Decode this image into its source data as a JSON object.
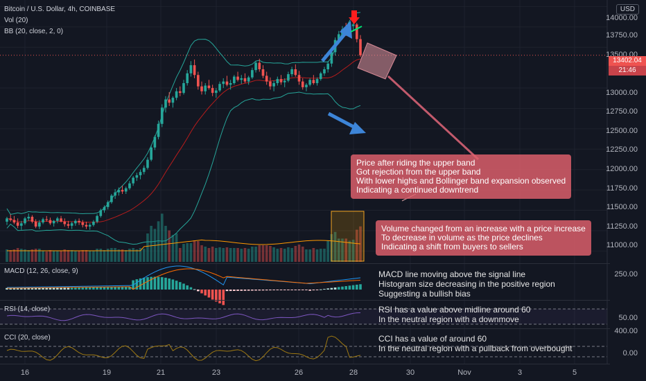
{
  "header": {
    "symbol_title": "Bitcoin / U.S. Dollar, 4h, COINBASE",
    "indicator_vol": "Vol (20)",
    "indicator_bb": "BB (20, close, 2, 0)",
    "currency": "USD"
  },
  "price_axis": {
    "labels": [
      "14000.00",
      "13750.00",
      "13500.00",
      "13000.00",
      "12750.00",
      "12500.00",
      "12250.00",
      "12000.00",
      "11750.00",
      "11500.00",
      "11250.00",
      "11000.00"
    ],
    "current_price": "13402.04",
    "countdown": "21:46"
  },
  "time_axis": {
    "labels": [
      "16",
      "19",
      "21",
      "23",
      "26",
      "28",
      "30",
      "Nov",
      "3",
      "5"
    ]
  },
  "panes": {
    "macd": {
      "label": "MACD (12, 26, close, 9)",
      "axis": "250.00"
    },
    "rsi": {
      "label": "RSI (14, close)",
      "axis": "50.00"
    },
    "cci": {
      "label": "CCI (20, close)",
      "axis_top": "400.00",
      "axis_mid": "0.00"
    }
  },
  "annotations": {
    "bb": [
      "Price after riding the upper band",
      "Got rejection from the upper band",
      "With lower highs and Bollinger band expansion observed",
      "Indicating a continued downtrend"
    ],
    "volume": [
      "Volume changed from an increase with a price increase",
      "To decrease in volume as the price declines",
      "Indicating a shift from buyers to sellers"
    ],
    "macd": [
      "MACD line moving above the signal line",
      "Histogram size decreasing in the positive region",
      "Suggesting a bullish bias"
    ],
    "rsi": [
      "RSI has a value above midline around 60",
      "In the neutral region with a downmove"
    ],
    "cci": [
      "CCI has a value of around 60",
      "In the neutral region with a pullback from overbought"
    ]
  },
  "colors": {
    "background": "#131722",
    "up": "#26a69a",
    "down": "#ef5350",
    "bb_band": "#26a69a",
    "bb_basis": "#b71c1c",
    "macd_line": "#2196f3",
    "signal_line": "#ff6d00",
    "rsi_line": "#7e57c2",
    "cci_line": "#a07a12",
    "annotation_bg": "#e2606d",
    "arrow_blue": "#3d85d8",
    "arrow_red": "#ff1e1e"
  },
  "chart_data": [
    {
      "type": "candlestick",
      "title": "Bitcoin / U.S. Dollar, 4h, COINBASE",
      "ylim": [
        10850,
        14080
      ],
      "last_price": 13402.04,
      "candles": [
        [
          11360,
          11420,
          11320,
          11400
        ],
        [
          11400,
          11450,
          11360,
          11380
        ],
        [
          11380,
          11430,
          11330,
          11350
        ],
        [
          11350,
          11400,
          11280,
          11310
        ],
        [
          11310,
          11370,
          11260,
          11340
        ],
        [
          11340,
          11420,
          11320,
          11400
        ],
        [
          11400,
          11460,
          11370,
          11420
        ],
        [
          11420,
          11440,
          11340,
          11360
        ],
        [
          11360,
          11390,
          11280,
          11300
        ],
        [
          11300,
          11380,
          11270,
          11350
        ],
        [
          11350,
          11410,
          11330,
          11390
        ],
        [
          11390,
          11430,
          11360,
          11380
        ],
        [
          11380,
          11410,
          11320,
          11340
        ],
        [
          11340,
          11380,
          11300,
          11370
        ],
        [
          11370,
          11420,
          11340,
          11400
        ],
        [
          11400,
          11430,
          11350,
          11360
        ],
        [
          11360,
          11400,
          11300,
          11330
        ],
        [
          11330,
          11370,
          11280,
          11310
        ],
        [
          11310,
          11360,
          11270,
          11340
        ],
        [
          11340,
          11390,
          11310,
          11370
        ],
        [
          11370,
          11400,
          11320,
          11350
        ],
        [
          11350,
          11380,
          11290,
          11320
        ],
        [
          11320,
          11360,
          11270,
          11300
        ],
        [
          11300,
          11340,
          11260,
          11320
        ],
        [
          11320,
          11380,
          11300,
          11360
        ],
        [
          11360,
          11450,
          11340,
          11430
        ],
        [
          11430,
          11520,
          11410,
          11500
        ],
        [
          11500,
          11560,
          11470,
          11540
        ],
        [
          11540,
          11620,
          11510,
          11600
        ],
        [
          11600,
          11700,
          11580,
          11680
        ],
        [
          11680,
          11760,
          11640,
          11720
        ],
        [
          11720,
          11780,
          11680,
          11750
        ],
        [
          11750,
          11800,
          11700,
          11730
        ],
        [
          11730,
          11790,
          11700,
          11770
        ],
        [
          11770,
          11860,
          11750,
          11830
        ],
        [
          11830,
          11920,
          11800,
          11900
        ],
        [
          11900,
          11960,
          11860,
          11930
        ],
        [
          11930,
          12000,
          11880,
          11970
        ],
        [
          11970,
          12050,
          11940,
          12020
        ],
        [
          12020,
          12150,
          12000,
          12120
        ],
        [
          12120,
          12300,
          12100,
          12270
        ],
        [
          12270,
          12420,
          12240,
          12400
        ],
        [
          12400,
          12600,
          12370,
          12560
        ],
        [
          12560,
          12800,
          12520,
          12760
        ],
        [
          12760,
          12900,
          12700,
          12860
        ],
        [
          12860,
          12950,
          12780,
          12820
        ],
        [
          12820,
          12900,
          12760,
          12880
        ],
        [
          12880,
          13000,
          12850,
          12960
        ],
        [
          12960,
          13020,
          12900,
          12940
        ],
        [
          12940,
          13100,
          12920,
          13060
        ],
        [
          13060,
          13220,
          13030,
          13180
        ],
        [
          13180,
          13330,
          13140,
          13280
        ],
        [
          13280,
          13350,
          13120,
          13160
        ],
        [
          13160,
          13200,
          12980,
          13020
        ],
        [
          13020,
          13080,
          12920,
          12960
        ],
        [
          12960,
          13060,
          12920,
          13030
        ],
        [
          13030,
          13100,
          12980,
          13000
        ],
        [
          13000,
          13040,
          12900,
          12940
        ],
        [
          12940,
          13000,
          12880,
          12970
        ],
        [
          12970,
          13080,
          12950,
          13050
        ],
        [
          13050,
          13120,
          13000,
          13080
        ],
        [
          13080,
          13150,
          13020,
          13040
        ],
        [
          13040,
          13100,
          12980,
          13060
        ],
        [
          13060,
          13160,
          13040,
          13140
        ],
        [
          13140,
          13200,
          13080,
          13100
        ],
        [
          13100,
          13160,
          13050,
          13120
        ],
        [
          13120,
          13180,
          13060,
          13080
        ],
        [
          13080,
          13150,
          13040,
          13130
        ],
        [
          13130,
          13250,
          13110,
          13220
        ],
        [
          13220,
          13330,
          13190,
          13310
        ],
        [
          13310,
          13360,
          13200,
          13230
        ],
        [
          13230,
          13280,
          13120,
          13150
        ],
        [
          13150,
          13200,
          13040,
          13080
        ],
        [
          13080,
          13130,
          12980,
          13020
        ],
        [
          13020,
          13090,
          12960,
          13060
        ],
        [
          13060,
          13140,
          13030,
          13110
        ],
        [
          13110,
          13160,
          13040,
          13070
        ],
        [
          13070,
          13120,
          13010,
          13090
        ],
        [
          13090,
          13200,
          13070,
          13170
        ],
        [
          13170,
          13260,
          13140,
          13230
        ],
        [
          13230,
          13290,
          13140,
          13160
        ],
        [
          13160,
          13210,
          13040,
          13080
        ],
        [
          13080,
          13120,
          12980,
          13010
        ],
        [
          13010,
          13060,
          12960,
          13040
        ],
        [
          13040,
          13120,
          13020,
          13100
        ],
        [
          13100,
          13160,
          13040,
          13060
        ],
        [
          13060,
          13130,
          13030,
          13110
        ],
        [
          13110,
          13200,
          13090,
          13180
        ],
        [
          13180,
          13260,
          13150,
          13230
        ],
        [
          13230,
          13330,
          13190,
          13300
        ],
        [
          13300,
          13460,
          13260,
          13440
        ],
        [
          13440,
          13620,
          13400,
          13590
        ],
        [
          13590,
          13700,
          13540,
          13660
        ],
        [
          13660,
          13760,
          13600,
          13720
        ],
        [
          13720,
          13800,
          13640,
          13680
        ],
        [
          13680,
          13790,
          13650,
          13760
        ],
        [
          13760,
          13850,
          13700,
          13780
        ],
        [
          13780,
          13800,
          13560,
          13600
        ],
        [
          13600,
          13650,
          13380,
          13402
        ]
      ],
      "bb_upper_end": 13820,
      "bb_lower_end": 12680,
      "bb_basis_end": 13250
    },
    {
      "type": "bar",
      "title": "Vol (20)",
      "note": "volume histogram, relative units"
    },
    {
      "type": "line",
      "title": "MACD (12, 26, close, 9)",
      "series": [
        {
          "name": "MACD"
        },
        {
          "name": "Signal"
        },
        {
          "name": "Histogram"
        }
      ],
      "ylim_label": "250.00"
    },
    {
      "type": "line",
      "title": "RSI (14, close)",
      "y_label": "50.00"
    },
    {
      "type": "line",
      "title": "CCI (20, close)",
      "y_labels": [
        "400.00",
        "0.00"
      ]
    }
  ]
}
